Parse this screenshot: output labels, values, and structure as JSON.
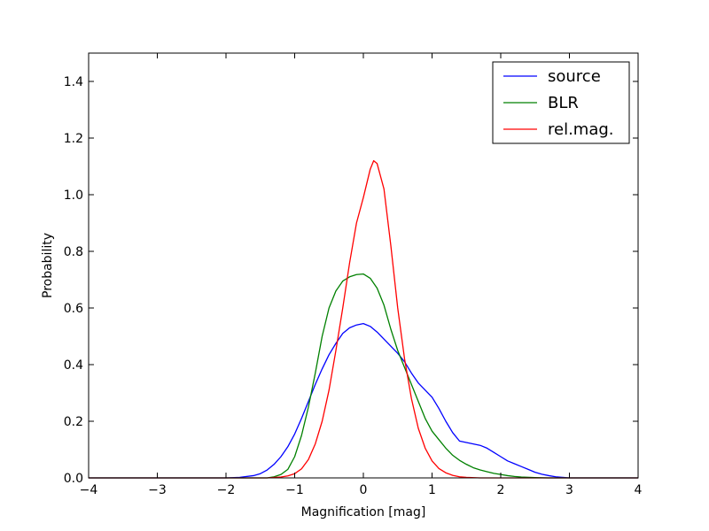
{
  "chart_data": {
    "type": "line",
    "xlabel": "Magnification [mag]",
    "ylabel": "Probability",
    "xlim": [
      -4,
      4
    ],
    "ylim": [
      0,
      1.5
    ],
    "xticks": [
      -4,
      -3,
      -2,
      -1,
      0,
      1,
      2,
      3,
      4
    ],
    "xtick_labels": [
      "−4",
      "−3",
      "−2",
      "−1",
      "0",
      "1",
      "2",
      "3",
      "4"
    ],
    "yticks": [
      0,
      0.2,
      0.4,
      0.6,
      0.8,
      1.0,
      1.2,
      1.4
    ],
    "ytick_labels": [
      "0.0",
      "0.2",
      "0.4",
      "0.6",
      "0.8",
      "1.0",
      "1.2",
      "1.4"
    ],
    "grid": false,
    "legend_position": "top-right",
    "series": [
      {
        "name": "source",
        "color": "#0000ff",
        "points": [
          [
            -4,
            0
          ],
          [
            -2,
            0
          ],
          [
            -1.8,
            0.002
          ],
          [
            -1.6,
            0.008
          ],
          [
            -1.5,
            0.015
          ],
          [
            -1.4,
            0.028
          ],
          [
            -1.3,
            0.048
          ],
          [
            -1.2,
            0.075
          ],
          [
            -1.1,
            0.11
          ],
          [
            -1.0,
            0.155
          ],
          [
            -0.9,
            0.21
          ],
          [
            -0.8,
            0.27
          ],
          [
            -0.7,
            0.33
          ],
          [
            -0.6,
            0.385
          ],
          [
            -0.5,
            0.435
          ],
          [
            -0.4,
            0.475
          ],
          [
            -0.3,
            0.51
          ],
          [
            -0.2,
            0.53
          ],
          [
            -0.1,
            0.54
          ],
          [
            0.0,
            0.545
          ],
          [
            0.1,
            0.535
          ],
          [
            0.2,
            0.515
          ],
          [
            0.3,
            0.49
          ],
          [
            0.4,
            0.465
          ],
          [
            0.5,
            0.44
          ],
          [
            0.6,
            0.41
          ],
          [
            0.7,
            0.37
          ],
          [
            0.8,
            0.335
          ],
          [
            0.9,
            0.31
          ],
          [
            1.0,
            0.285
          ],
          [
            1.1,
            0.245
          ],
          [
            1.2,
            0.2
          ],
          [
            1.3,
            0.16
          ],
          [
            1.4,
            0.13
          ],
          [
            1.5,
            0.125
          ],
          [
            1.6,
            0.12
          ],
          [
            1.7,
            0.115
          ],
          [
            1.8,
            0.105
          ],
          [
            1.9,
            0.09
          ],
          [
            2.0,
            0.075
          ],
          [
            2.1,
            0.06
          ],
          [
            2.2,
            0.05
          ],
          [
            2.3,
            0.04
          ],
          [
            2.4,
            0.03
          ],
          [
            2.5,
            0.02
          ],
          [
            2.6,
            0.013
          ],
          [
            2.7,
            0.008
          ],
          [
            2.8,
            0.004
          ],
          [
            2.9,
            0.002
          ],
          [
            3.0,
            0
          ],
          [
            4,
            0
          ]
        ]
      },
      {
        "name": "BLR",
        "color": "#008000",
        "points": [
          [
            -4,
            0
          ],
          [
            -1.4,
            0
          ],
          [
            -1.3,
            0.004
          ],
          [
            -1.2,
            0.012
          ],
          [
            -1.1,
            0.03
          ],
          [
            -1.0,
            0.075
          ],
          [
            -0.9,
            0.15
          ],
          [
            -0.8,
            0.25
          ],
          [
            -0.7,
            0.37
          ],
          [
            -0.6,
            0.5
          ],
          [
            -0.5,
            0.6
          ],
          [
            -0.4,
            0.66
          ],
          [
            -0.3,
            0.695
          ],
          [
            -0.2,
            0.71
          ],
          [
            -0.1,
            0.718
          ],
          [
            0.0,
            0.72
          ],
          [
            0.1,
            0.705
          ],
          [
            0.2,
            0.67
          ],
          [
            0.3,
            0.61
          ],
          [
            0.4,
            0.525
          ],
          [
            0.5,
            0.45
          ],
          [
            0.6,
            0.39
          ],
          [
            0.7,
            0.33
          ],
          [
            0.8,
            0.27
          ],
          [
            0.9,
            0.21
          ],
          [
            1.0,
            0.165
          ],
          [
            1.1,
            0.135
          ],
          [
            1.2,
            0.105
          ],
          [
            1.3,
            0.08
          ],
          [
            1.4,
            0.062
          ],
          [
            1.5,
            0.048
          ],
          [
            1.6,
            0.036
          ],
          [
            1.7,
            0.028
          ],
          [
            1.8,
            0.022
          ],
          [
            1.9,
            0.016
          ],
          [
            2.0,
            0.012
          ],
          [
            2.1,
            0.008
          ],
          [
            2.2,
            0.005
          ],
          [
            2.3,
            0.003
          ],
          [
            2.5,
            0.001
          ],
          [
            2.7,
            0
          ],
          [
            4,
            0
          ]
        ]
      },
      {
        "name": "rel.mag.",
        "color": "#ff0000",
        "points": [
          [
            -4,
            0
          ],
          [
            -1.4,
            0
          ],
          [
            -1.2,
            0.003
          ],
          [
            -1.1,
            0.007
          ],
          [
            -1.0,
            0.015
          ],
          [
            -0.9,
            0.032
          ],
          [
            -0.8,
            0.065
          ],
          [
            -0.7,
            0.12
          ],
          [
            -0.6,
            0.2
          ],
          [
            -0.5,
            0.31
          ],
          [
            -0.4,
            0.45
          ],
          [
            -0.3,
            0.6
          ],
          [
            -0.2,
            0.76
          ],
          [
            -0.1,
            0.9
          ],
          [
            0.0,
            0.99
          ],
          [
            0.1,
            1.09
          ],
          [
            0.15,
            1.12
          ],
          [
            0.2,
            1.11
          ],
          [
            0.3,
            1.02
          ],
          [
            0.4,
            0.82
          ],
          [
            0.5,
            0.6
          ],
          [
            0.6,
            0.42
          ],
          [
            0.7,
            0.28
          ],
          [
            0.8,
            0.175
          ],
          [
            0.9,
            0.105
          ],
          [
            1.0,
            0.06
          ],
          [
            1.1,
            0.033
          ],
          [
            1.2,
            0.018
          ],
          [
            1.3,
            0.009
          ],
          [
            1.4,
            0.004
          ],
          [
            1.5,
            0.002
          ],
          [
            1.7,
            0
          ],
          [
            4,
            0
          ]
        ]
      }
    ]
  }
}
